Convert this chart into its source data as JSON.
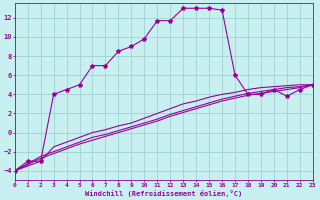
{
  "title": "",
  "xlabel": "Windchill (Refroidissement éolien,°C)",
  "ylabel": "",
  "bg_color": "#c8f0f0",
  "line_color": "#990099",
  "grid_color": "#99cccc",
  "xlim": [
    0,
    23
  ],
  "ylim": [
    -5,
    13.5
  ],
  "xticks": [
    0,
    1,
    2,
    3,
    4,
    5,
    6,
    7,
    8,
    9,
    10,
    11,
    12,
    13,
    14,
    15,
    16,
    17,
    18,
    19,
    20,
    21,
    22,
    23
  ],
  "yticks": [
    -4,
    -2,
    0,
    2,
    4,
    6,
    8,
    10,
    12
  ],
  "series": [
    {
      "x": [
        0,
        1,
        2,
        3,
        4,
        5,
        6,
        7,
        8,
        9,
        10,
        11,
        12,
        13,
        14,
        15,
        16,
        17,
        18,
        19,
        20,
        21,
        22,
        23
      ],
      "y": [
        -4,
        -3,
        -3,
        4,
        4.5,
        5,
        7,
        7,
        8.5,
        9,
        9.8,
        11.7,
        11.7,
        13,
        13,
        13,
        12.8,
        6,
        4,
        4,
        4.5,
        3.8,
        4.5,
        5
      ],
      "marker": "*",
      "lw": 0.8
    },
    {
      "x": [
        0,
        2,
        3,
        4,
        5,
        6,
        7,
        8,
        9,
        10,
        11,
        12,
        13,
        14,
        15,
        16,
        17,
        18,
        19,
        20,
        21,
        22,
        23
      ],
      "y": [
        -4,
        -3,
        -1.5,
        -1,
        -0.5,
        0,
        0.3,
        0.7,
        1,
        1.5,
        2,
        2.5,
        3,
        3.3,
        3.7,
        4,
        4.2,
        4.5,
        4.7,
        4.8,
        4.9,
        5,
        5
      ],
      "marker": null,
      "lw": 0.8
    },
    {
      "x": [
        0,
        2,
        3,
        4,
        5,
        6,
        7,
        8,
        9,
        10,
        11,
        12,
        13,
        14,
        15,
        16,
        17,
        18,
        19,
        20,
        21,
        22,
        23
      ],
      "y": [
        -4,
        -2.5,
        -2,
        -1.5,
        -1,
        -0.5,
        -0.2,
        0.2,
        0.6,
        1,
        1.4,
        1.9,
        2.3,
        2.7,
        3.1,
        3.5,
        3.8,
        4.1,
        4.3,
        4.5,
        4.7,
        4.8,
        5
      ],
      "marker": null,
      "lw": 0.8
    },
    {
      "x": [
        0,
        2,
        3,
        4,
        5,
        6,
        7,
        8,
        9,
        10,
        11,
        12,
        13,
        14,
        15,
        16,
        17,
        18,
        19,
        20,
        21,
        22,
        23
      ],
      "y": [
        -4,
        -2.7,
        -2.2,
        -1.7,
        -1.2,
        -0.8,
        -0.4,
        0,
        0.4,
        0.8,
        1.2,
        1.7,
        2.1,
        2.5,
        2.9,
        3.3,
        3.6,
        3.9,
        4.1,
        4.3,
        4.5,
        4.7,
        5
      ],
      "marker": null,
      "lw": 0.8
    }
  ]
}
